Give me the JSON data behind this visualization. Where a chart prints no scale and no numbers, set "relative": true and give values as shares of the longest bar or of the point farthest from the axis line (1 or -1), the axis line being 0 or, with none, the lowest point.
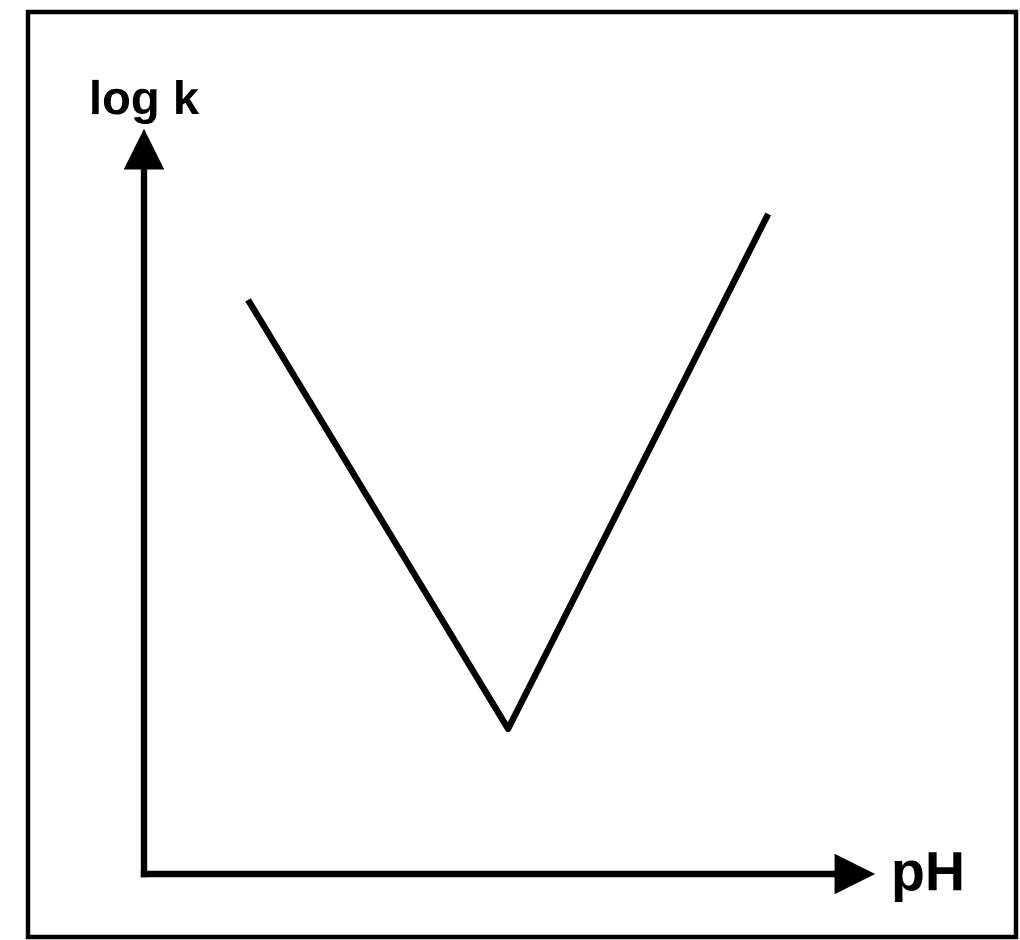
{
  "chart_data": {
    "type": "line",
    "xlabel": "pH",
    "ylabel": "log k",
    "categories": [
      null,
      null,
      null
    ],
    "values": [
      0.87,
      0.22,
      1
    ],
    "color": "#000000",
    "relative": true,
    "marker": "none",
    "line_style": "solid"
  }
}
